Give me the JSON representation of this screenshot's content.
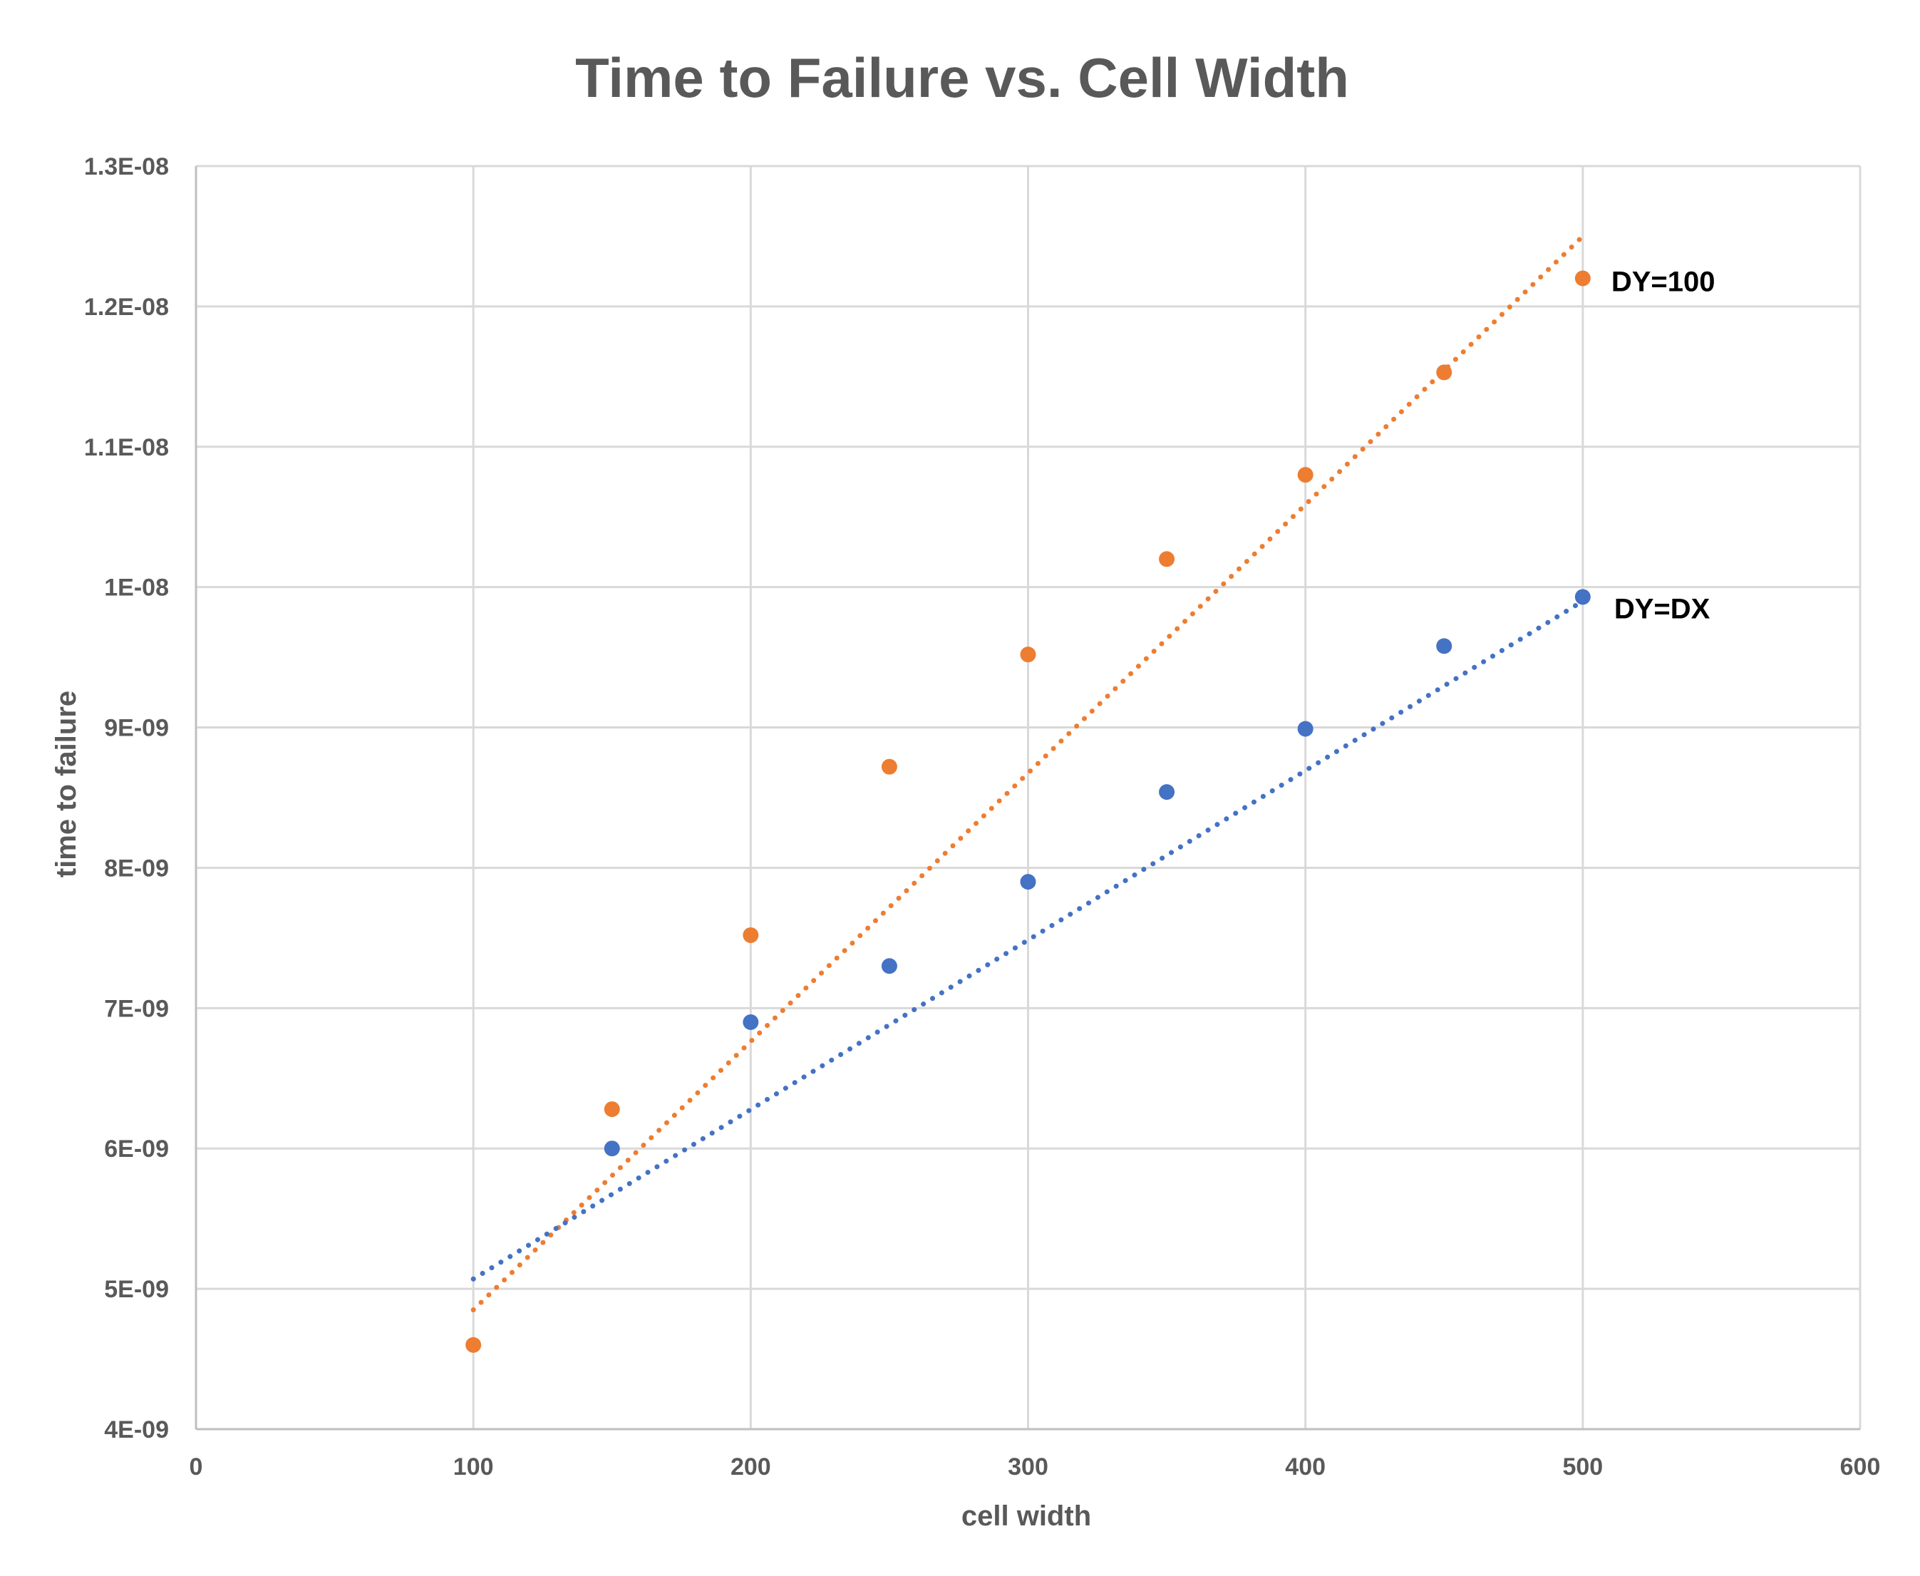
{
  "chart_data": {
    "type": "scatter",
    "title": "Time to Failure vs. Cell Width",
    "xlabel": "cell width",
    "ylabel": "time to failure",
    "xlim": [
      0,
      600
    ],
    "ylim": [
      4e-09,
      1.3e-08
    ],
    "x_ticks": [
      0,
      100,
      200,
      300,
      400,
      500,
      600
    ],
    "x_tick_labels": [
      "0",
      "100",
      "200",
      "300",
      "400",
      "500",
      "600"
    ],
    "y_ticks": [
      4e-09,
      5e-09,
      6e-09,
      7e-09,
      8e-09,
      9e-09,
      1e-08,
      1.1e-08,
      1.2e-08,
      1.3e-08
    ],
    "y_tick_labels": [
      "4E-09",
      "5E-09",
      "6E-09",
      "7E-09",
      "8E-09",
      "9E-09",
      "1E-08",
      "1.1E-08",
      "1.2E-08",
      "1.3E-08"
    ],
    "grid": true,
    "series": [
      {
        "name": "DY=100",
        "color": "#ED7D31",
        "x": [
          100,
          150,
          200,
          250,
          300,
          350,
          400,
          450,
          500
        ],
        "values": [
          4.6e-09,
          6.28e-09,
          7.52e-09,
          8.72e-09,
          9.52e-09,
          1.02e-08,
          1.08e-08,
          1.153e-08,
          1.22e-08
        ],
        "trendline": {
          "style": "dotted",
          "x": [
            100,
            500
          ],
          "y": [
            4.85e-09,
            1.25e-08
          ]
        }
      },
      {
        "name": "DY=DX",
        "color": "#4472C4",
        "x": [
          150,
          200,
          250,
          300,
          350,
          400,
          450,
          500
        ],
        "values": [
          6e-09,
          6.9e-09,
          7.3e-09,
          7.9e-09,
          8.54e-09,
          8.99e-09,
          9.58e-09,
          9.93e-09
        ],
        "trendline": {
          "style": "dotted",
          "x": [
            100,
            500
          ],
          "y": [
            5.07e-09,
            9.9e-09
          ]
        }
      }
    ]
  }
}
